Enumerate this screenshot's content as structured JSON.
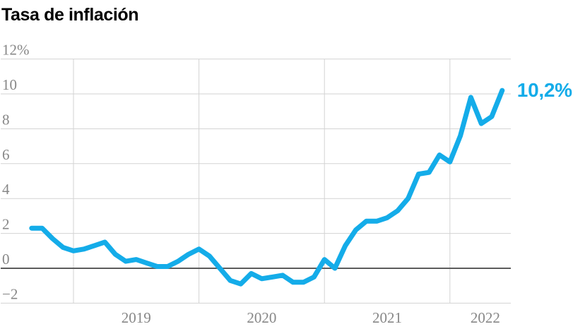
{
  "title": "Tasa de inflación",
  "end_label": "10,2%",
  "colors": {
    "line": "#14ACE9",
    "grid": "#d3d3d3",
    "zero_line": "#5c5c5c",
    "tick_label": "#878787",
    "title": "#000000",
    "background": "#ffffff"
  },
  "chart_data": {
    "type": "line",
    "title": "Tasa de inflación",
    "unit": "%",
    "frequency": "monthly",
    "grid": true,
    "legend": "none",
    "ylim": [
      -2,
      12
    ],
    "y_ticks": [
      12,
      10,
      8,
      6,
      4,
      2,
      0,
      -2
    ],
    "y_tick_labels": [
      "12%",
      "10",
      "8",
      "6",
      "4",
      "2",
      "0",
      "−2"
    ],
    "x_tick_labels": [
      "2019",
      "2020",
      "2021",
      "2022"
    ],
    "annotation_last_value": "10,2%",
    "categories": [
      "2018-09",
      "2018-10",
      "2018-11",
      "2018-12",
      "2019-01",
      "2019-02",
      "2019-03",
      "2019-04",
      "2019-05",
      "2019-06",
      "2019-07",
      "2019-08",
      "2019-09",
      "2019-10",
      "2019-11",
      "2019-12",
      "2020-01",
      "2020-02",
      "2020-03",
      "2020-04",
      "2020-05",
      "2020-06",
      "2020-07",
      "2020-08",
      "2020-09",
      "2020-10",
      "2020-11",
      "2020-12",
      "2021-01",
      "2021-02",
      "2021-03",
      "2021-04",
      "2021-05",
      "2021-06",
      "2021-07",
      "2021-08",
      "2021-09",
      "2021-10",
      "2021-11",
      "2021-12",
      "2022-01",
      "2022-02",
      "2022-03",
      "2022-04",
      "2022-05",
      "2022-06"
    ],
    "series": [
      {
        "name": "Tasa de inflación",
        "values": [
          2.3,
          2.3,
          1.7,
          1.2,
          1.0,
          1.1,
          1.3,
          1.5,
          0.8,
          0.4,
          0.5,
          0.3,
          0.1,
          0.1,
          0.4,
          0.8,
          1.1,
          0.7,
          0.0,
          -0.7,
          -0.9,
          -0.3,
          -0.6,
          -0.5,
          -0.4,
          -0.8,
          -0.8,
          -0.5,
          0.5,
          0.0,
          1.3,
          2.2,
          2.7,
          2.7,
          2.9,
          3.3,
          4.0,
          5.4,
          5.5,
          6.5,
          6.1,
          7.6,
          9.8,
          8.3,
          8.7,
          10.2
        ]
      }
    ]
  }
}
